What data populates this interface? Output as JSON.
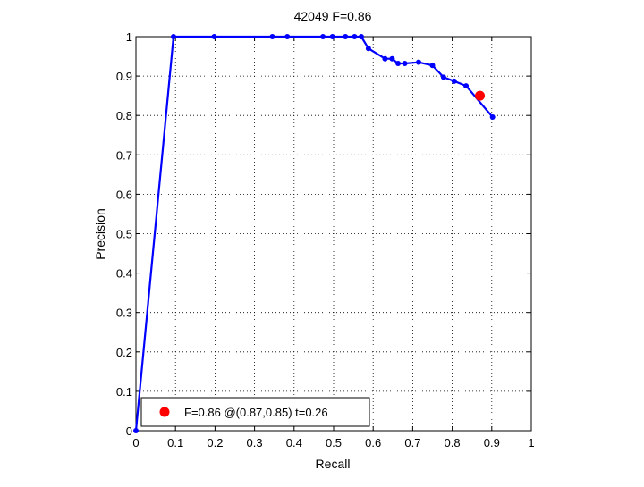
{
  "chart_data": {
    "type": "line",
    "title": "42049 F=0.86",
    "xlabel": "Recall",
    "ylabel": "Precision",
    "xlim": [
      0,
      1
    ],
    "ylim": [
      0,
      1
    ],
    "grid": true,
    "x_ticks": [
      "0",
      "0.1",
      "0.2",
      "0.3",
      "0.4",
      "0.5",
      "0.6",
      "0.7",
      "0.8",
      "0.9",
      "1"
    ],
    "y_ticks": [
      "0",
      "0.1",
      "0.2",
      "0.3",
      "0.4",
      "0.5",
      "0.6",
      "0.7",
      "0.8",
      "0.9",
      "1"
    ],
    "series": [
      {
        "color": "#0000ff",
        "marker": "dot",
        "x": [
          0,
          0.095,
          0.198,
          0.345,
          0.383,
          0.473,
          0.497,
          0.53,
          0.553,
          0.57,
          0.588,
          0.63,
          0.648,
          0.663,
          0.68,
          0.715,
          0.75,
          0.778,
          0.805,
          0.835,
          0.902
        ],
        "y": [
          0,
          1.0,
          1.0,
          1.0,
          1.0,
          1.0,
          1.0,
          1.0,
          1.0,
          1.0,
          0.97,
          0.944,
          0.944,
          0.932,
          0.932,
          0.935,
          0.927,
          0.897,
          0.887,
          0.875,
          0.796
        ]
      }
    ],
    "highlight_point": {
      "x": 0.87,
      "y": 0.85,
      "color": "#ff0000"
    },
    "legend": {
      "placement": "bottom-left",
      "entries": [
        {
          "label": "F=0.86 @(0.87,0.85) t=0.26",
          "color": "#ff0000"
        }
      ]
    }
  }
}
